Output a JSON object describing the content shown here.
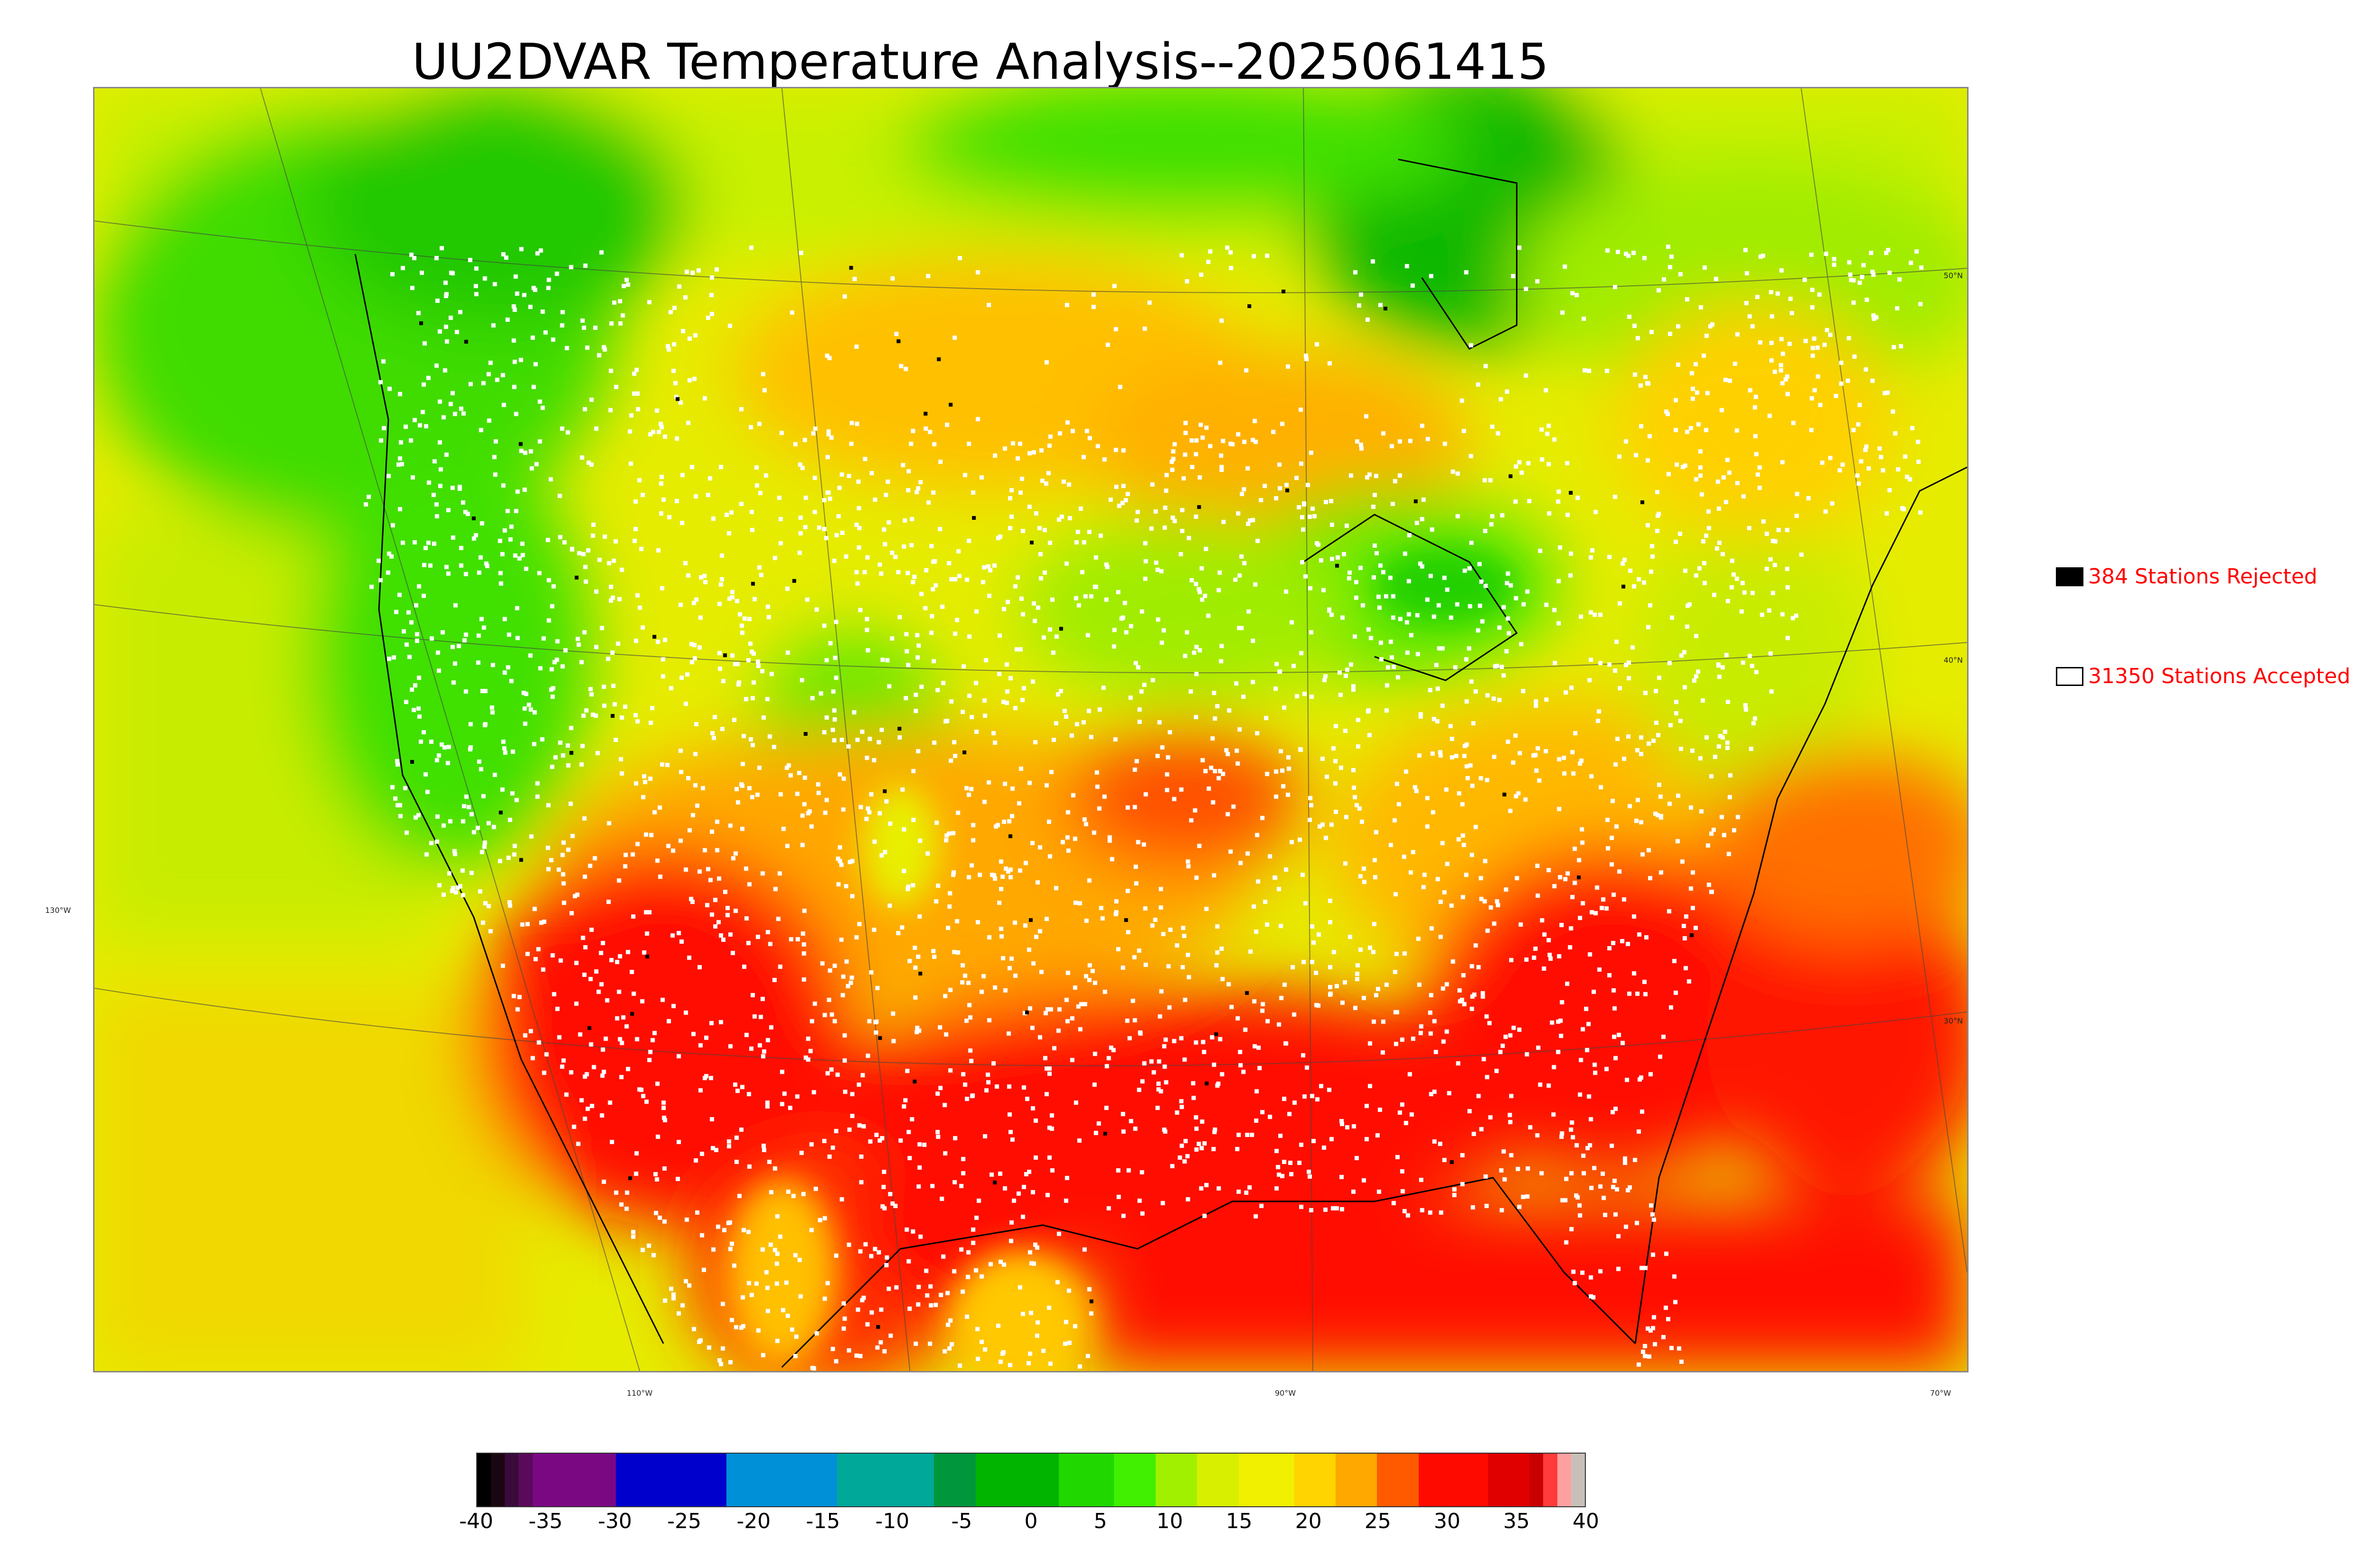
{
  "title": "UU2DVAR Temperature Analysis--2025061415",
  "coordinate_labels": {
    "lat_50": "50°N",
    "lat_40": "40°N",
    "lat_30": "30°N",
    "lon_130": "130°W",
    "lon_110": "110°W",
    "lon_90": "90°W",
    "lon_70": "70°W"
  },
  "legend": [
    {
      "label": "384 Stations Rejected",
      "swatch_color": "#000000"
    },
    {
      "label": "31350 Stations Accepted",
      "swatch_color": "#ffffff"
    }
  ],
  "colorbar": {
    "ticks": [
      "-40",
      "-35",
      "-30",
      "-25",
      "-20",
      "-15",
      "-10",
      "-5",
      "0",
      "5",
      "10",
      "15",
      "20",
      "25",
      "30",
      "35",
      "40"
    ],
    "min": -40,
    "max": 40,
    "segments": [
      {
        "from": -40,
        "to": -39,
        "color": "#000000"
      },
      {
        "from": -39,
        "to": -38,
        "color": "#1a0612"
      },
      {
        "from": -38,
        "to": -37,
        "color": "#3a0a3a"
      },
      {
        "from": -37,
        "to": -36,
        "color": "#5a0a5a"
      },
      {
        "from": -36,
        "to": -30,
        "color": "#7b0883"
      },
      {
        "from": -30,
        "to": -22,
        "color": "#0000cc"
      },
      {
        "from": -22,
        "to": -14,
        "color": "#0090d8"
      },
      {
        "from": -14,
        "to": -7,
        "color": "#00a89a"
      },
      {
        "from": -7,
        "to": -4,
        "color": "#00963c"
      },
      {
        "from": -4,
        "to": 2,
        "color": "#00b400"
      },
      {
        "from": 2,
        "to": 6,
        "color": "#20d800"
      },
      {
        "from": 6,
        "to": 9,
        "color": "#40f000"
      },
      {
        "from": 9,
        "to": 12,
        "color": "#a0f000"
      },
      {
        "from": 12,
        "to": 15,
        "color": "#d8f000"
      },
      {
        "from": 15,
        "to": 19,
        "color": "#f0f000"
      },
      {
        "from": 19,
        "to": 22,
        "color": "#ffd400"
      },
      {
        "from": 22,
        "to": 25,
        "color": "#ffa800"
      },
      {
        "from": 25,
        "to": 28,
        "color": "#ff5a00"
      },
      {
        "from": 28,
        "to": 33,
        "color": "#ff0a00"
      },
      {
        "from": 33,
        "to": 36,
        "color": "#e00000"
      },
      {
        "from": 36,
        "to": 37,
        "color": "#c80000"
      },
      {
        "from": 37,
        "to": 38,
        "color": "#ff3a3a"
      },
      {
        "from": 38,
        "to": 39,
        "color": "#ffa0a0"
      },
      {
        "from": 39,
        "to": 40,
        "color": "#c8c0b8"
      }
    ]
  },
  "colors": {
    "frame_border": "#888888",
    "legend_text": "#ff0000"
  }
}
